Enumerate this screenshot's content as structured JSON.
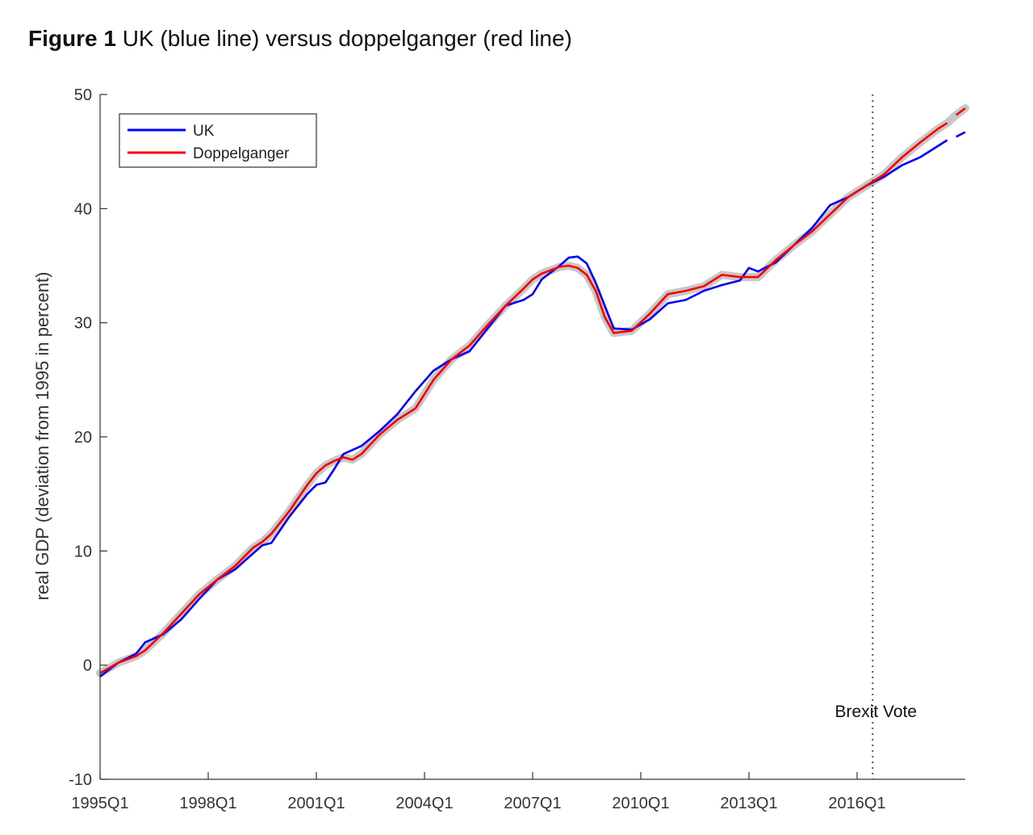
{
  "figure": {
    "title_lead": "Figure 1",
    "title_rest": " UK (blue line) versus doppelganger (red line)"
  },
  "chart_data": {
    "type": "line",
    "ylabel": "real GDP (deviation from 1995 in percent)",
    "xlabel": "",
    "x_start": "1995Q1",
    "x_end": "2018Q4",
    "xlim": [
      "1995Q1",
      "2018Q4"
    ],
    "ylim": [
      -10,
      50
    ],
    "yticks": [
      -10,
      0,
      10,
      20,
      30,
      40,
      50
    ],
    "xticks": [
      "1995Q1",
      "1998Q1",
      "2001Q1",
      "2004Q1",
      "2007Q1",
      "2010Q1",
      "2013Q1",
      "2016Q1"
    ],
    "grid": false,
    "legend_position": "top-left",
    "annotation": {
      "text": "Brexit Vote",
      "x": "2016Q3",
      "line_style": "dotted"
    },
    "confidence_band": {
      "color": "#c8c8c8",
      "around": "Doppelganger"
    },
    "series": [
      {
        "name": "UK",
        "color": "#0000ff",
        "points": [
          [
            "1995Q1",
            -1.0
          ],
          [
            "1995Q3",
            0.2
          ],
          [
            "1996Q1",
            1.0
          ],
          [
            "1996Q2",
            2.0
          ],
          [
            "1996Q4",
            2.7
          ],
          [
            "1997Q2",
            4.0
          ],
          [
            "1997Q4",
            5.8
          ],
          [
            "1998Q2",
            7.5
          ],
          [
            "1998Q4",
            8.4
          ],
          [
            "1999Q2",
            9.8
          ],
          [
            "1999Q3",
            10.5
          ],
          [
            "1999Q4",
            10.7
          ],
          [
            "2000Q2",
            13.0
          ],
          [
            "2000Q4",
            15.0
          ],
          [
            "2001Q1",
            15.8
          ],
          [
            "2001Q2",
            16.0
          ],
          [
            "2001Q3",
            17.2
          ],
          [
            "2001Q4",
            18.5
          ],
          [
            "2002Q2",
            19.2
          ],
          [
            "2002Q4",
            20.5
          ],
          [
            "2003Q2",
            22.0
          ],
          [
            "2003Q4",
            24.0
          ],
          [
            "2004Q2",
            25.8
          ],
          [
            "2004Q4",
            26.8
          ],
          [
            "2005Q2",
            27.5
          ],
          [
            "2005Q4",
            29.5
          ],
          [
            "2006Q2",
            31.5
          ],
          [
            "2006Q4",
            32.0
          ],
          [
            "2007Q1",
            32.5
          ],
          [
            "2007Q2",
            33.8
          ],
          [
            "2007Q4",
            35.0
          ],
          [
            "2008Q1",
            35.7
          ],
          [
            "2008Q2",
            35.8
          ],
          [
            "2008Q3",
            35.2
          ],
          [
            "2008Q4",
            33.5
          ],
          [
            "2009Q1",
            31.5
          ],
          [
            "2009Q2",
            29.5
          ],
          [
            "2009Q4",
            29.4
          ],
          [
            "2010Q2",
            30.3
          ],
          [
            "2010Q4",
            31.7
          ],
          [
            "2011Q2",
            32.0
          ],
          [
            "2011Q4",
            32.8
          ],
          [
            "2012Q2",
            33.3
          ],
          [
            "2012Q4",
            33.7
          ],
          [
            "2013Q1",
            34.8
          ],
          [
            "2013Q2",
            34.5
          ],
          [
            "2013Q4",
            35.3
          ],
          [
            "2014Q2",
            36.8
          ],
          [
            "2014Q4",
            38.3
          ],
          [
            "2015Q2",
            40.3
          ],
          [
            "2015Q4",
            41.0
          ],
          [
            "2016Q2",
            42.0
          ],
          [
            "2016Q4",
            42.8
          ],
          [
            "2017Q2",
            43.8
          ],
          [
            "2017Q4",
            44.5
          ],
          [
            "2018Q2",
            45.5
          ],
          [
            "2018Q3",
            46.0
          ]
        ],
        "extra_segment": [
          [
            "2018Q4",
            46.3
          ],
          [
            "2019Q1",
            46.7
          ]
        ]
      },
      {
        "name": "Doppelganger",
        "color": "#ff0000",
        "points": [
          [
            "1995Q1",
            -0.7
          ],
          [
            "1995Q3",
            0.2
          ],
          [
            "1996Q1",
            0.8
          ],
          [
            "1996Q2",
            1.3
          ],
          [
            "1996Q4",
            2.8
          ],
          [
            "1997Q2",
            4.5
          ],
          [
            "1997Q4",
            6.2
          ],
          [
            "1998Q2",
            7.5
          ],
          [
            "1998Q4",
            8.7
          ],
          [
            "1999Q2",
            10.3
          ],
          [
            "1999Q3",
            10.8
          ],
          [
            "1999Q4",
            11.5
          ],
          [
            "2000Q2",
            13.5
          ],
          [
            "2000Q4",
            15.8
          ],
          [
            "2001Q1",
            16.8
          ],
          [
            "2001Q2",
            17.5
          ],
          [
            "2001Q3",
            17.9
          ],
          [
            "2001Q4",
            18.2
          ],
          [
            "2002Q1",
            18.0
          ],
          [
            "2002Q2",
            18.5
          ],
          [
            "2002Q4",
            20.2
          ],
          [
            "2003Q2",
            21.5
          ],
          [
            "2003Q4",
            22.5
          ],
          [
            "2004Q2",
            25.0
          ],
          [
            "2004Q4",
            26.8
          ],
          [
            "2005Q2",
            28.0
          ],
          [
            "2005Q4",
            29.8
          ],
          [
            "2006Q2",
            31.5
          ],
          [
            "2006Q4",
            33.0
          ],
          [
            "2007Q1",
            33.8
          ],
          [
            "2007Q2",
            34.3
          ],
          [
            "2007Q4",
            34.9
          ],
          [
            "2008Q1",
            35.0
          ],
          [
            "2008Q2",
            34.8
          ],
          [
            "2008Q3",
            34.2
          ],
          [
            "2008Q4",
            32.8
          ],
          [
            "2009Q1",
            30.5
          ],
          [
            "2009Q2",
            29.1
          ],
          [
            "2009Q4",
            29.3
          ],
          [
            "2010Q2",
            30.8
          ],
          [
            "2010Q4",
            32.5
          ],
          [
            "2011Q2",
            32.8
          ],
          [
            "2011Q4",
            33.2
          ],
          [
            "2012Q2",
            34.2
          ],
          [
            "2012Q4",
            34.0
          ],
          [
            "2013Q1",
            34.0
          ],
          [
            "2013Q2",
            34.0
          ],
          [
            "2013Q4",
            35.5
          ],
          [
            "2014Q2",
            36.8
          ],
          [
            "2014Q4",
            38.0
          ],
          [
            "2015Q2",
            39.5
          ],
          [
            "2015Q4",
            41.0
          ],
          [
            "2016Q2",
            42.0
          ],
          [
            "2016Q4",
            43.0
          ],
          [
            "2017Q2",
            44.5
          ],
          [
            "2017Q4",
            45.8
          ],
          [
            "2018Q2",
            47.0
          ],
          [
            "2018Q3",
            47.5
          ]
        ],
        "extra_segment": [
          [
            "2018Q4",
            48.2
          ],
          [
            "2019Q1",
            48.8
          ]
        ]
      }
    ]
  }
}
